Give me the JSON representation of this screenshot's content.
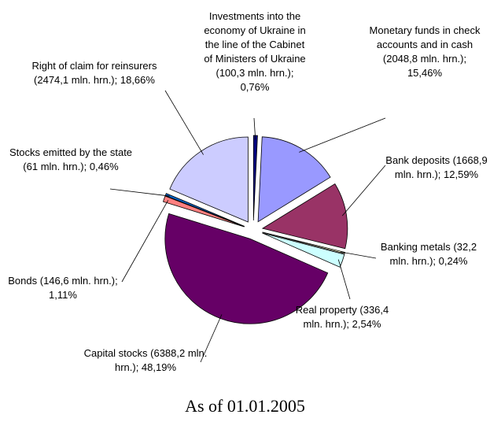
{
  "chart_data": {
    "type": "pie",
    "title": "As of 01.01.2005",
    "categories": [
      "Investments into the economy of Ukraine in the line of the Cabinet of Ministers of Ukraine",
      "Monetary funds in check accounts and in cash",
      "Bank deposits",
      "Banking metals",
      "Real property",
      "Capital stocks",
      "Bonds",
      "Stocks emitted by the state",
      "Right of claim for reinsurers"
    ],
    "values": [
      0.76,
      15.46,
      12.59,
      0.24,
      2.54,
      48.19,
      1.11,
      0.46,
      18.66
    ],
    "value_labels": [
      "(100,3 mln. hrn.); 0,76%",
      "(2048,8 mln. hrn.); 15,46%",
      "(1668,9 mln. hrn.); 12,59%",
      "(32,2 mln. hrn.); 0,24%",
      "(336,4 mln. hrn.); 2,54%",
      "(6388,2 mln. hrn.); 48,19%",
      "(146,6 mln. hrn.); 1,11%",
      "(61 mln. hrn.); 0,46%",
      "(2474,1 mln. hrn.); 18,66%"
    ],
    "colors": [
      "#000080",
      "#9999ff",
      "#993366",
      "#ffffcc",
      "#ccffff",
      "#660066",
      "#ff8080",
      "#0066cc",
      "#ccccff"
    ]
  }
}
